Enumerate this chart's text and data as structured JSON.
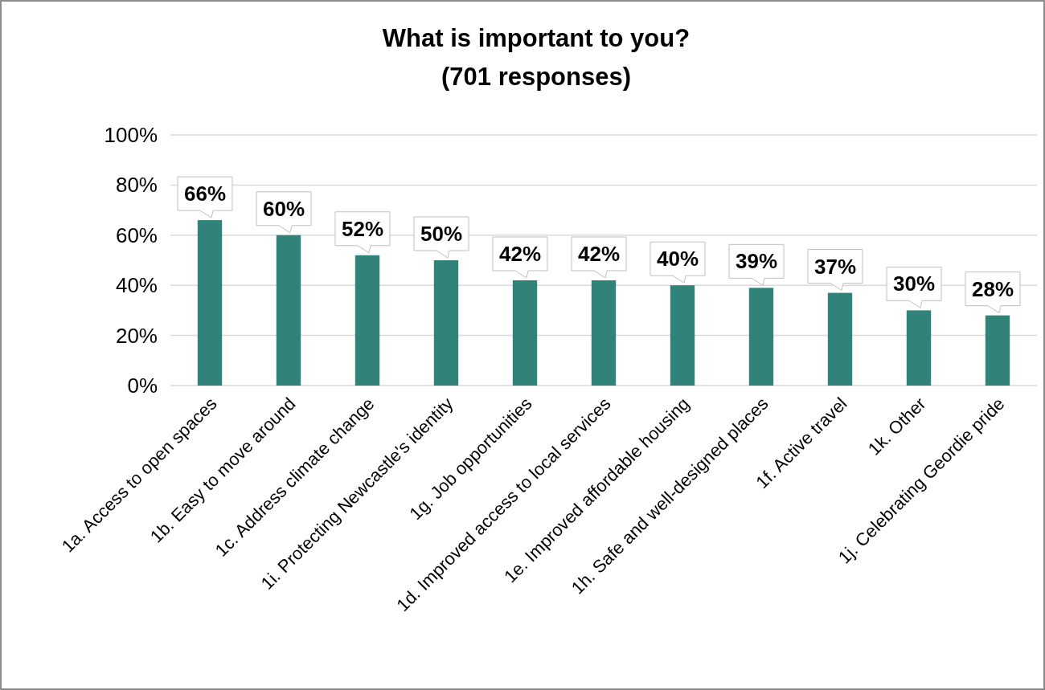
{
  "chart_data": {
    "type": "bar",
    "title": "What is important to you?\n(701 responses)",
    "categories": [
      "1a. Access to open spaces",
      "1b. Easy to move around",
      "1c. Address climate change",
      "1i. Protecting Newcastle's identity",
      "1g. Job opportunities",
      "1d. Improved access to local services",
      "1e. Improved affordable housing",
      "1h. Safe and well-designed places",
      "1f. Active travel",
      "1k. Other",
      "1j. Celebrating Geordie pride"
    ],
    "values": [
      66,
      60,
      52,
      50,
      42,
      42,
      40,
      39,
      37,
      30,
      28
    ],
    "value_labels": [
      "66%",
      "60%",
      "52%",
      "50%",
      "42%",
      "42%",
      "40%",
      "39%",
      "37%",
      "30%",
      "28%"
    ],
    "color": "#31837a",
    "ylim": [
      0,
      100
    ],
    "yticks": [
      {
        "value": 0,
        "label": "0%"
      },
      {
        "value": 20,
        "label": "20%"
      },
      {
        "value": 40,
        "label": "40%"
      },
      {
        "value": 60,
        "label": "60%"
      },
      {
        "value": 80,
        "label": "80%"
      },
      {
        "value": 100,
        "label": "100%"
      }
    ],
    "grid": "y"
  }
}
